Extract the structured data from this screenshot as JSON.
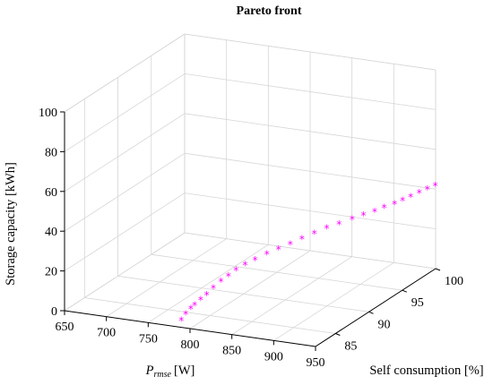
{
  "chart_data": {
    "type": "scatter",
    "title": "Pareto front",
    "x_axis": {
      "label_main": "P",
      "label_sub": "rmse",
      "label_unit": "[W]",
      "range": [
        650,
        950
      ],
      "ticks": [
        650,
        700,
        750,
        800,
        850,
        900,
        950
      ]
    },
    "y_axis": {
      "label": "Self consumption [%]",
      "range": [
        82,
        100
      ],
      "ticks": [
        85,
        90,
        95,
        100
      ]
    },
    "z_axis": {
      "label": "Storage capacity [kWh]",
      "range": [
        0,
        100
      ],
      "ticks": [
        0,
        20,
        40,
        60,
        80,
        100
      ]
    },
    "grid": true,
    "marker": "asterisk",
    "color": "#ff00ff",
    "series": [
      {
        "points": [
          [
            780,
            83.2,
            0.0
          ],
          [
            782,
            83.6,
            2.5
          ],
          [
            785,
            84.0,
            4.5
          ],
          [
            788,
            84.2,
            6.0
          ],
          [
            792,
            84.6,
            8.0
          ],
          [
            796,
            85.0,
            10.0
          ],
          [
            800,
            85.5,
            12.5
          ],
          [
            805,
            86.0,
            15.0
          ],
          [
            810,
            86.5,
            17.0
          ],
          [
            815,
            87.0,
            19.0
          ],
          [
            822,
            87.5,
            21.0
          ],
          [
            830,
            88.0,
            23.0
          ],
          [
            840,
            88.5,
            25.5
          ],
          [
            850,
            89.0,
            27.5
          ],
          [
            860,
            89.5,
            29.5
          ],
          [
            870,
            90.0,
            31.5
          ],
          [
            880,
            90.6,
            33.5
          ],
          [
            890,
            91.2,
            35.5
          ],
          [
            900,
            91.8,
            37.0
          ],
          [
            910,
            92.5,
            38.5
          ],
          [
            918,
            93.2,
            39.5
          ],
          [
            925,
            94.0,
            40.0
          ],
          [
            930,
            94.8,
            40.5
          ],
          [
            936,
            95.6,
            41.0
          ],
          [
            940,
            96.3,
            41.5
          ],
          [
            944,
            97.0,
            42.0
          ],
          [
            948,
            97.8,
            42.5
          ],
          [
            952,
            98.5,
            43.0
          ],
          [
            956,
            99.2,
            43.5
          ]
        ]
      }
    ]
  }
}
